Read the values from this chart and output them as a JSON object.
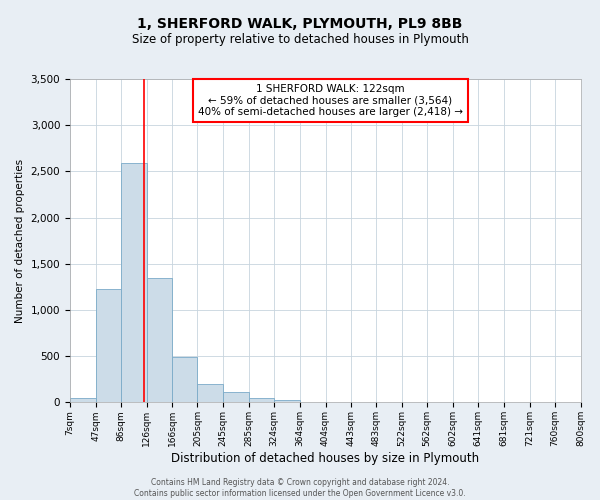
{
  "title": "1, SHERFORD WALK, PLYMOUTH, PL9 8BB",
  "subtitle": "Size of property relative to detached houses in Plymouth",
  "xlabel": "Distribution of detached houses by size in Plymouth",
  "ylabel": "Number of detached properties",
  "bin_labels": [
    "7sqm",
    "47sqm",
    "86sqm",
    "126sqm",
    "166sqm",
    "205sqm",
    "245sqm",
    "285sqm",
    "324sqm",
    "364sqm",
    "404sqm",
    "443sqm",
    "483sqm",
    "522sqm",
    "562sqm",
    "602sqm",
    "641sqm",
    "681sqm",
    "721sqm",
    "760sqm",
    "800sqm"
  ],
  "bin_edges": [
    7,
    47,
    86,
    126,
    166,
    205,
    245,
    285,
    324,
    364,
    404,
    443,
    483,
    522,
    562,
    602,
    641,
    681,
    721,
    760,
    800
  ],
  "bar_heights": [
    50,
    1230,
    2590,
    1350,
    490,
    200,
    110,
    50,
    30,
    0,
    0,
    0,
    0,
    0,
    0,
    0,
    0,
    0,
    0,
    0
  ],
  "bar_color": "#ccdce8",
  "bar_edge_color": "#7aaac8",
  "property_line_x": 122,
  "property_line_color": "red",
  "ylim": [
    0,
    3500
  ],
  "yticks": [
    0,
    500,
    1000,
    1500,
    2000,
    2500,
    3000,
    3500
  ],
  "annotation_title": "1 SHERFORD WALK: 122sqm",
  "annotation_line1": "← 59% of detached houses are smaller (3,564)",
  "annotation_line2": "40% of semi-detached houses are larger (2,418) →",
  "annotation_box_color": "white",
  "annotation_box_edge_color": "red",
  "footer_line1": "Contains HM Land Registry data © Crown copyright and database right 2024.",
  "footer_line2": "Contains public sector information licensed under the Open Government Licence v3.0.",
  "background_color": "#e8eef4",
  "plot_background_color": "white",
  "grid_color": "#c8d4de",
  "title_fontsize": 10,
  "subtitle_fontsize": 8.5,
  "xlabel_fontsize": 8.5,
  "ylabel_fontsize": 7.5,
  "xtick_fontsize": 6.5,
  "ytick_fontsize": 7.5,
  "annotation_fontsize": 7.5,
  "footer_fontsize": 5.5
}
